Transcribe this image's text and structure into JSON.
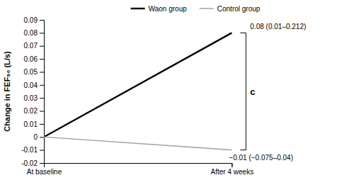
{
  "chart_data": {
    "type": "line",
    "categories": [
      "At baseline",
      "After 4 weeks"
    ],
    "series": [
      {
        "name": "Waon group",
        "color": "#000000",
        "values": [
          0,
          0.08
        ]
      },
      {
        "name": "Control group",
        "color": "#aaaaaa",
        "values": [
          0,
          -0.01
        ]
      }
    ],
    "y_label": "Change in FEF₅₀ (L/s)",
    "ylim": [
      -0.02,
      0.09
    ],
    "yticks": [
      -0.02,
      -0.01,
      0,
      0.01,
      0.02,
      0.03,
      0.04,
      0.05,
      0.06,
      0.07,
      0.08,
      0.09
    ],
    "annotations": [
      "0.08 (0.01–0.212)",
      "−0.01 (−0.075–0.04)",
      "c"
    ],
    "legend": "top"
  }
}
